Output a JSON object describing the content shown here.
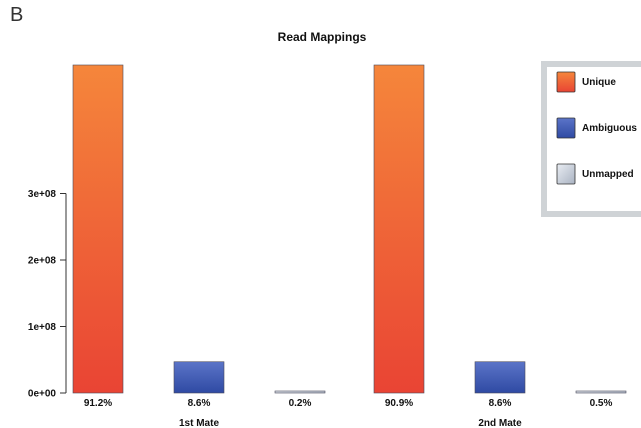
{
  "panel_label": "B",
  "chart_data": {
    "type": "bar",
    "title": "Read Mappings",
    "xlabel": "",
    "ylabel": "",
    "y_ticks": [
      "0e+00",
      "1e+08",
      "2e+08",
      "3e+08"
    ],
    "ylim": [
      0,
      500000000
    ],
    "groups": [
      {
        "name": "1st Mate",
        "bars": [
          {
            "series": "Unique",
            "value": 500000000,
            "label": "91.2%"
          },
          {
            "series": "Ambiguous",
            "value": 47000000,
            "label": "8.6%"
          },
          {
            "series": "Unmapped",
            "value": 1100000,
            "label": "0.2%"
          }
        ]
      },
      {
        "name": "2nd Mate",
        "bars": [
          {
            "series": "Unique",
            "value": 500000000,
            "label": "90.9%"
          },
          {
            "series": "Ambiguous",
            "value": 47000000,
            "label": "8.6%"
          },
          {
            "series": "Unmapped",
            "value": 2700000,
            "label": "0.5%"
          }
        ]
      }
    ],
    "legend": {
      "placement": "top-right",
      "items": [
        {
          "name": "Unique",
          "color_top": "#f5863b",
          "color_bottom": "#e94434"
        },
        {
          "name": "Ambiguous",
          "color_top": "#5b74c8",
          "color_bottom": "#2f4aa3"
        },
        {
          "name": "Unmapped",
          "color_top": "#e9edf3",
          "color_bottom": "#aab3c2"
        }
      ]
    },
    "grid": false
  }
}
